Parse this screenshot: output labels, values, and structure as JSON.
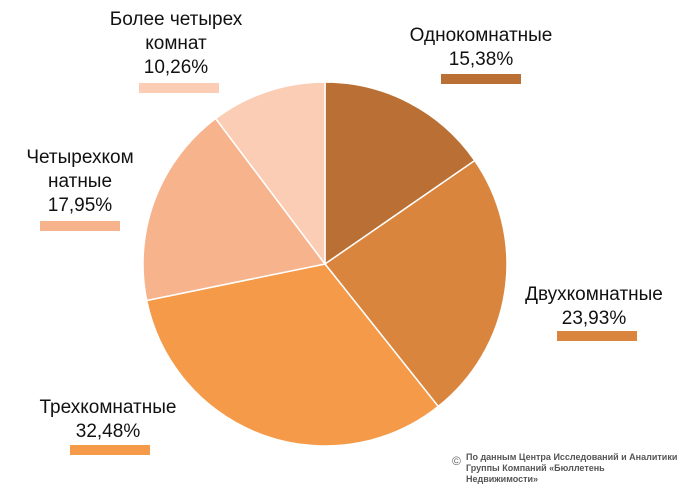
{
  "chart_data": {
    "type": "pie",
    "title": "",
    "start": "top, clockwise",
    "slices": [
      {
        "name": "Однокомнатные",
        "lines": [
          "Однокомнатные"
        ],
        "value": 15.38,
        "label": "15,38%",
        "color": "#BA7034"
      },
      {
        "name": "Двухкомнатные",
        "lines": [
          "Двухкомнатные"
        ],
        "value": 23.93,
        "label": "23,93%",
        "color": "#DA853D"
      },
      {
        "name": "Трехкомнатные",
        "lines": [
          "Трехкомнатные"
        ],
        "value": 32.48,
        "label": "32,48%",
        "color": "#F59A48"
      },
      {
        "name": "Четырехкомнатные",
        "lines": [
          "Четырехком",
          "натные"
        ],
        "value": 17.95,
        "label": "17,95%",
        "color": "#F7B38C"
      },
      {
        "name": "Более четырех комнат",
        "lines": [
          "Более  четырех",
          "комнат"
        ],
        "value": 10.26,
        "label": "10,26%",
        "color": "#FBCDB4"
      }
    ]
  },
  "source": {
    "copyright": "©",
    "line1": "По данным Центра Исследований и Аналитики",
    "line2": "Группы Компаний «Бюллетень Недвижимости»"
  }
}
